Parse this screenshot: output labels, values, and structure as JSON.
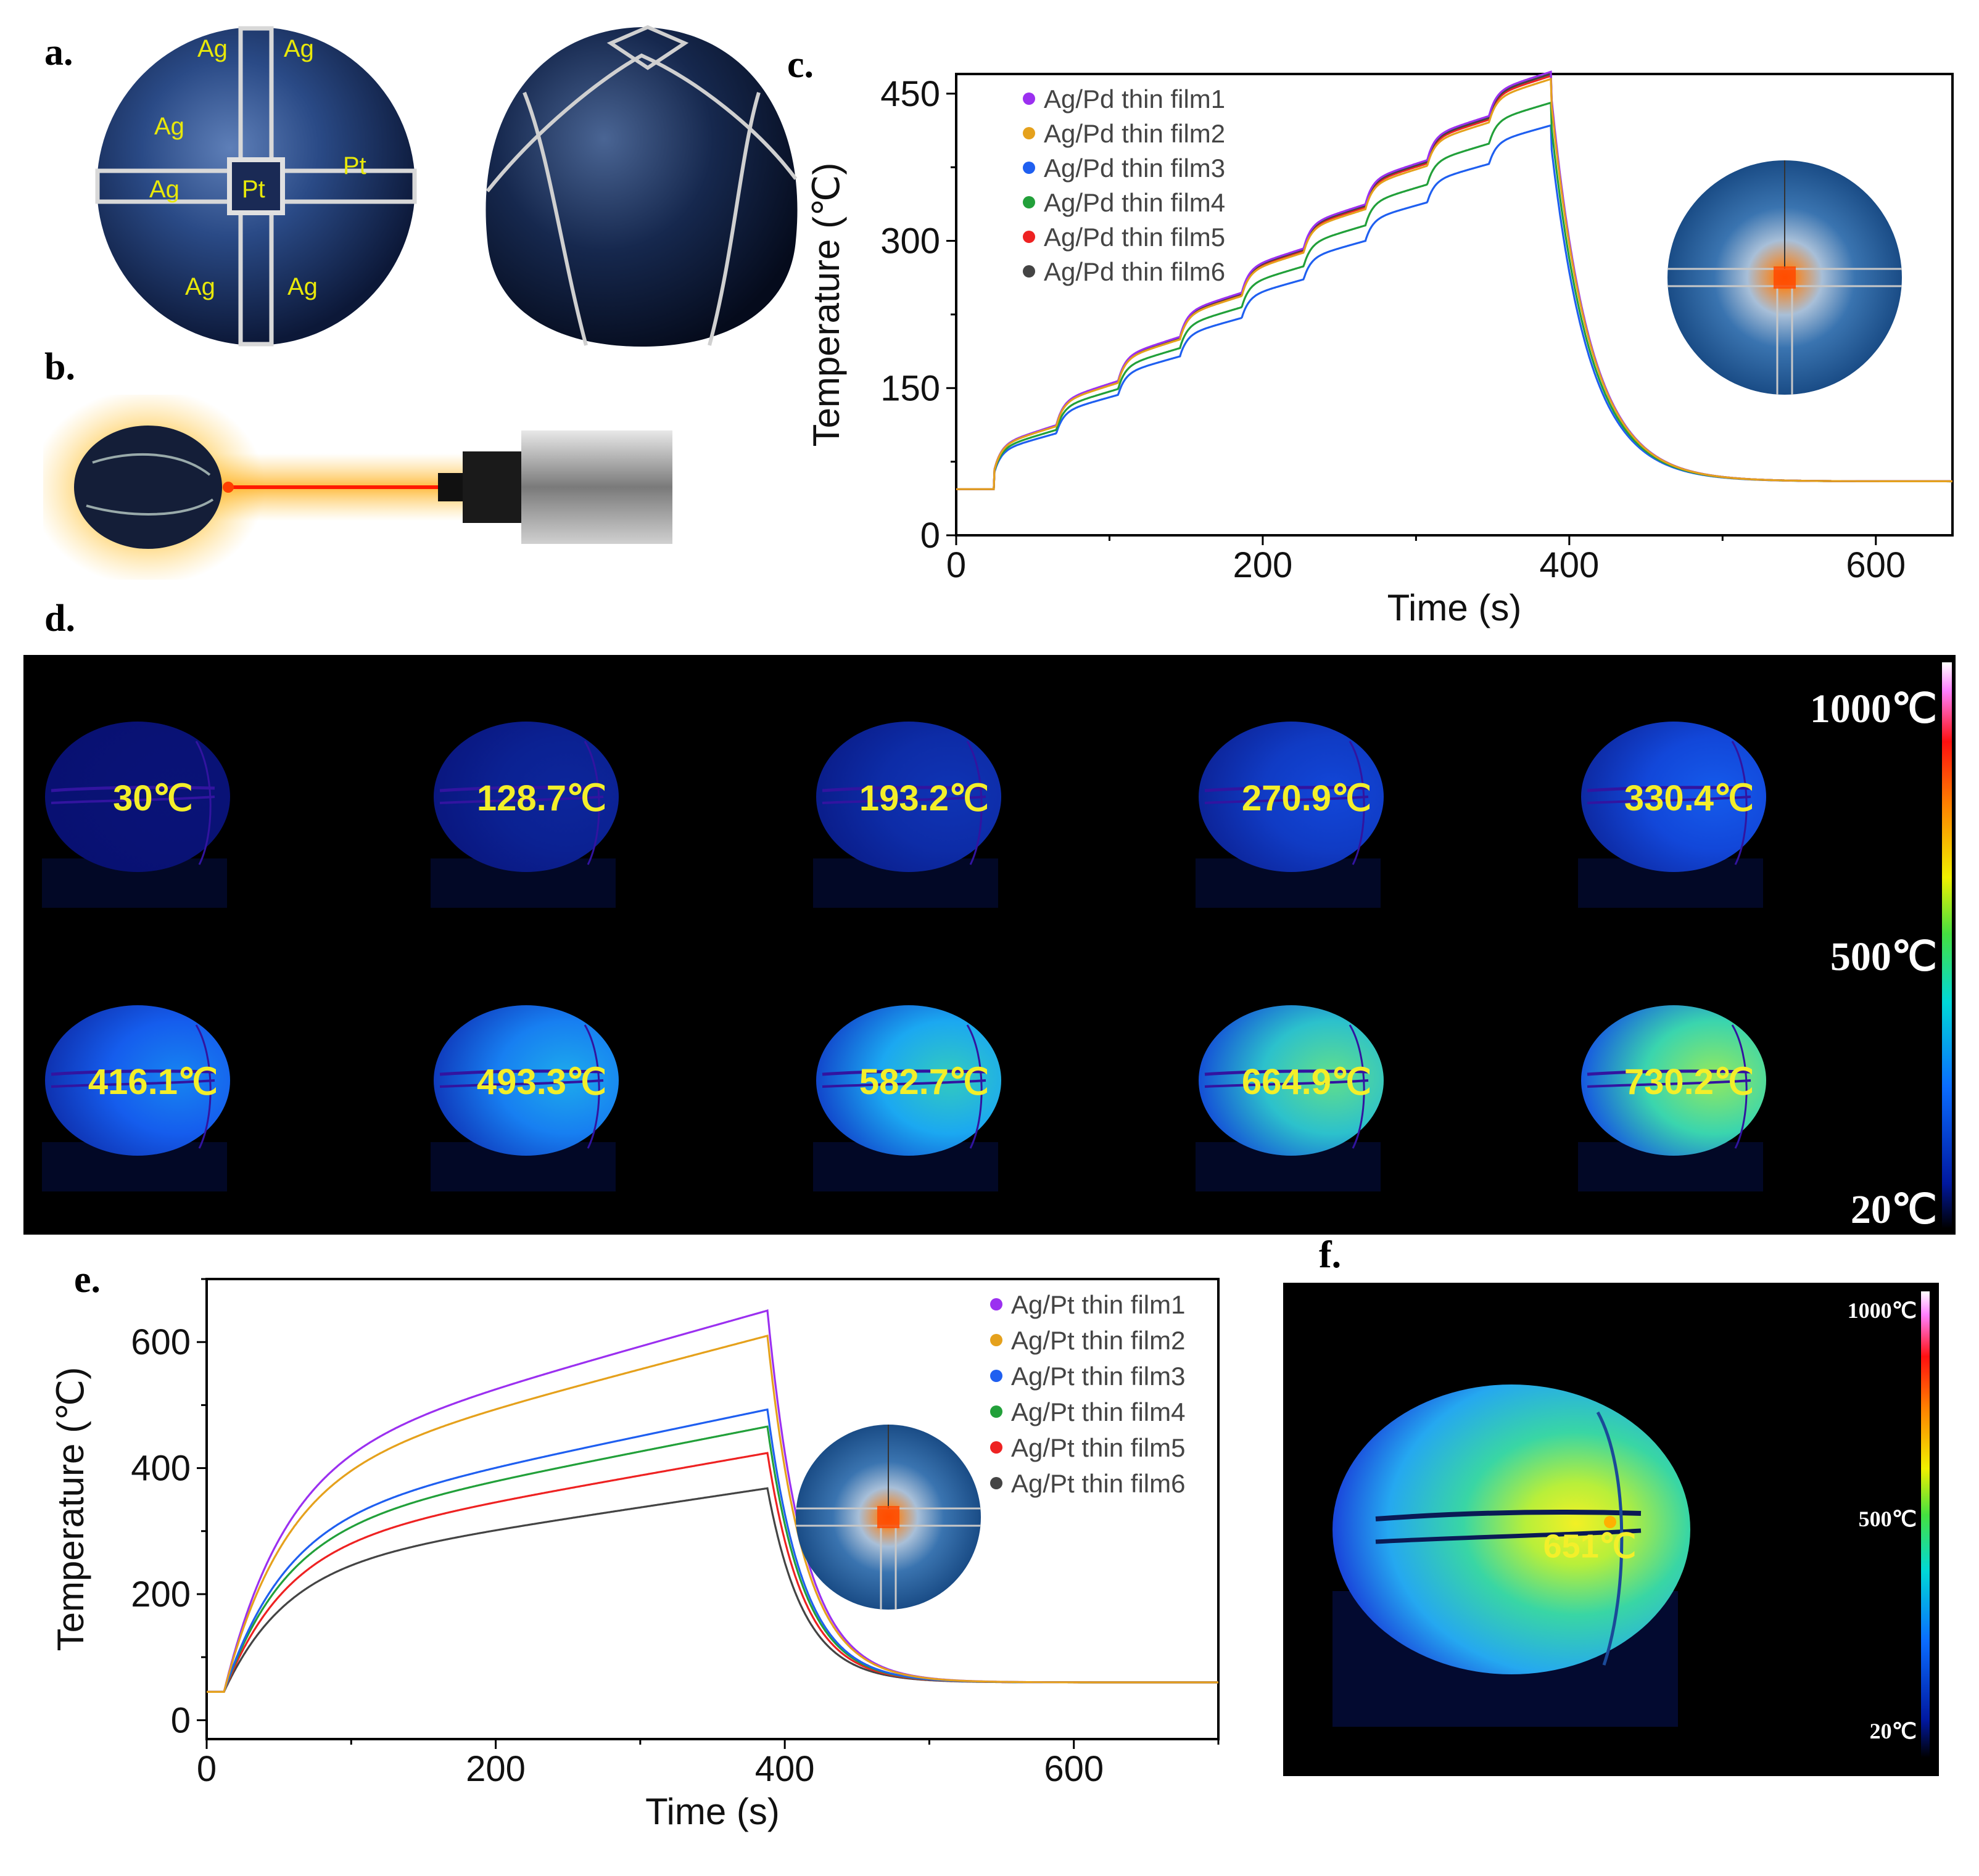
{
  "panel_labels": {
    "a": "a.",
    "b": "b.",
    "c": "c.",
    "d": "d.",
    "e": "e.",
    "f": "f."
  },
  "panel_a": {
    "electrode_labels": [
      "Ag",
      "Ag",
      "Ag",
      "Ag",
      "Ag",
      "Ag",
      "Pt",
      "Pt"
    ],
    "label_color": "#e8e80a"
  },
  "chart_data": [
    {
      "id": "panel-c",
      "type": "line",
      "title": "",
      "xlabel": "Time (s)",
      "ylabel": "Temperature (℃)",
      "xlim": [
        0,
        650
      ],
      "ylim": [
        0,
        470
      ],
      "xticks": [
        0,
        200,
        400,
        600
      ],
      "yticks": [
        0,
        150,
        300,
        450
      ],
      "legend_position": "top-left",
      "profile": "step",
      "baseline": 47,
      "heat_start": 25,
      "heat_end": 388,
      "final": 55,
      "series": [
        {
          "name": "Ag/Pd thin film1",
          "color": "#9b30f0",
          "peak": 452
        },
        {
          "name": "Ag/Pd thin film2",
          "color": "#e5a11c",
          "peak": 445
        },
        {
          "name": "Ag/Pd thin film3",
          "color": "#1f5ff0",
          "peak": 400
        },
        {
          "name": "Ag/Pd thin film4",
          "color": "#22a03a",
          "peak": 422
        },
        {
          "name": "Ag/Pd thin film5",
          "color": "#ee2222",
          "peak": 448
        },
        {
          "name": "Ag/Pd thin film6",
          "color": "#444444",
          "peak": 450
        }
      ]
    },
    {
      "id": "panel-e",
      "type": "line",
      "title": "",
      "xlabel": "Time (s)",
      "ylabel": "Temperature (℃)",
      "xlim": [
        0,
        700
      ],
      "ylim": [
        -30,
        700
      ],
      "xticks": [
        0,
        200,
        400,
        600
      ],
      "yticks": [
        0,
        200,
        400,
        600
      ],
      "legend_position": "top-right",
      "profile": "saturating",
      "baseline": 45,
      "heat_start": 12,
      "heat_end": 388,
      "final": 60,
      "series": [
        {
          "name": "Ag/Pt thin film1",
          "color": "#9b30f0",
          "peak": 650
        },
        {
          "name": "Ag/Pt thin film2",
          "color": "#e5a11c",
          "peak": 610
        },
        {
          "name": "Ag/Pt thin film3",
          "color": "#1f5ff0",
          "peak": 493
        },
        {
          "name": "Ag/Pt thin film4",
          "color": "#22a03a",
          "peak": 466
        },
        {
          "name": "Ag/Pt thin film5",
          "color": "#ee2222",
          "peak": 424
        },
        {
          "name": "Ag/Pt thin film6",
          "color": "#444444",
          "peak": 368
        }
      ]
    }
  ],
  "panel_d": {
    "temperatures": [
      "30℃",
      "128.7℃",
      "193.2℃",
      "270.9℃",
      "330.4℃",
      "416.1℃",
      "493.3℃",
      "582.7℃",
      "664.9℃",
      "730.2℃"
    ],
    "intensity": [
      0.02,
      0.1,
      0.16,
      0.24,
      0.3,
      0.38,
      0.46,
      0.56,
      0.66,
      0.74
    ],
    "scale": {
      "max": "1000℃",
      "mid": "500℃",
      "min": "20℃"
    }
  },
  "panel_f": {
    "temperature": "651℃",
    "scale": {
      "max": "1000℃",
      "mid": "500℃",
      "min": "20℃"
    }
  }
}
